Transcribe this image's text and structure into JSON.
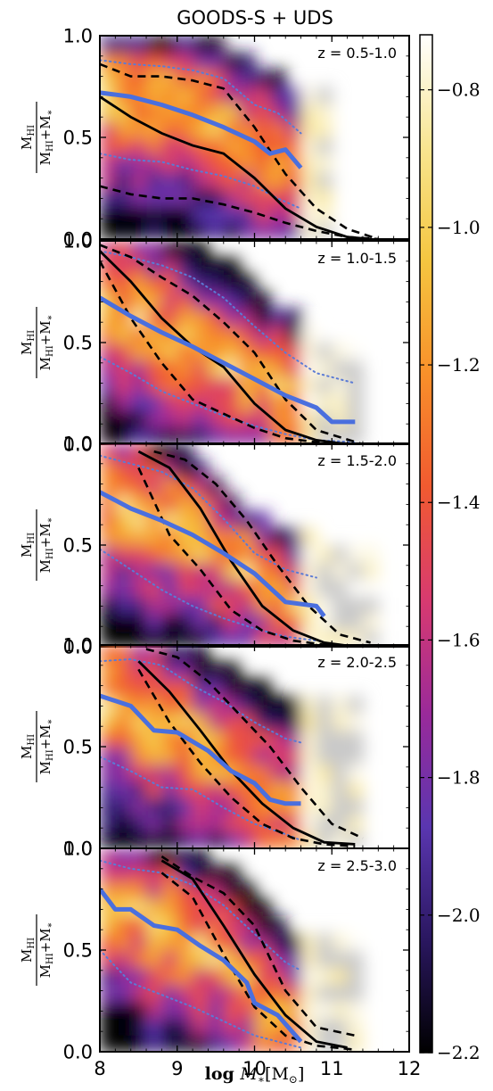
{
  "chart_data": {
    "type": "heatmap",
    "title": "GOODS-S + UDS",
    "xlabel_parts": [
      "log ",
      "M",
      "∗",
      "[M",
      "⊙",
      "]"
    ],
    "ylabel_parts": [
      "M",
      "HI",
      "M",
      "HI",
      "+M",
      "∗"
    ],
    "xlim": [
      8,
      12
    ],
    "xticks": [
      "8",
      "9",
      "10",
      "11",
      "12"
    ],
    "ylim": [
      0,
      1
    ],
    "yticks": [
      "0.0",
      "0.5",
      "1.0"
    ],
    "colorbar": {
      "range": [
        -2.2,
        -0.72
      ],
      "ticks": [
        -0.8,
        -1.0,
        -1.2,
        -1.4,
        -1.6,
        -1.8,
        -2.0,
        -2.2
      ],
      "tick_labels": [
        "−0.8",
        "−1.0",
        "−1.2",
        "−1.4",
        "−1.6",
        "−1.8",
        "−2.0",
        "−2.2"
      ],
      "colormap": [
        "#000000",
        "#2a1760",
        "#5a36b0",
        "#9a2a9a",
        "#d83a70",
        "#f15a30",
        "#f8902a",
        "#f5c640",
        "#f8e590",
        "#ffffff"
      ]
    },
    "colors": {
      "median": "#000000",
      "sixteen_84": "#000000",
      "blue_median": "#4a6fde",
      "blue_spread": "#5b7bd5",
      "empty": "#c9c9c9"
    },
    "panels": [
      {
        "label": "z = 0.5-1.0",
        "black_median": [
          [
            8.0,
            0.7
          ],
          [
            8.4,
            0.6
          ],
          [
            8.8,
            0.52
          ],
          [
            9.2,
            0.46
          ],
          [
            9.6,
            0.42
          ],
          [
            10.0,
            0.3
          ],
          [
            10.4,
            0.15
          ],
          [
            10.8,
            0.06
          ],
          [
            11.2,
            0.01
          ],
          [
            11.5,
            0.0
          ]
        ],
        "black_p16": [
          [
            8.0,
            0.26
          ],
          [
            8.4,
            0.22
          ],
          [
            8.8,
            0.2
          ],
          [
            9.2,
            0.2
          ],
          [
            9.6,
            0.17
          ],
          [
            10.0,
            0.13
          ],
          [
            10.4,
            0.08
          ],
          [
            10.8,
            0.04
          ],
          [
            11.2,
            0.01
          ],
          [
            11.6,
            0.0
          ]
        ],
        "black_p84": [
          [
            8.0,
            0.86
          ],
          [
            8.4,
            0.8
          ],
          [
            8.8,
            0.8
          ],
          [
            9.2,
            0.78
          ],
          [
            9.6,
            0.74
          ],
          [
            10.0,
            0.55
          ],
          [
            10.4,
            0.32
          ],
          [
            10.8,
            0.15
          ],
          [
            11.2,
            0.05
          ],
          [
            11.6,
            0.0
          ]
        ],
        "blue_median": [
          [
            8.0,
            0.72
          ],
          [
            8.4,
            0.7
          ],
          [
            8.8,
            0.66
          ],
          [
            9.2,
            0.61
          ],
          [
            9.6,
            0.55
          ],
          [
            10.0,
            0.48
          ],
          [
            10.2,
            0.42
          ],
          [
            10.4,
            0.44
          ],
          [
            10.6,
            0.35
          ]
        ],
        "blue_p16": [
          [
            8.0,
            0.42
          ],
          [
            8.4,
            0.39
          ],
          [
            8.8,
            0.38
          ],
          [
            9.2,
            0.34
          ],
          [
            9.6,
            0.31
          ],
          [
            10.0,
            0.26
          ],
          [
            10.3,
            0.2
          ],
          [
            10.6,
            0.15
          ]
        ],
        "blue_p84": [
          [
            8.0,
            0.88
          ],
          [
            8.4,
            0.86
          ],
          [
            8.8,
            0.85
          ],
          [
            9.2,
            0.83
          ],
          [
            9.6,
            0.79
          ],
          [
            10.0,
            0.66
          ],
          [
            10.3,
            0.62
          ],
          [
            10.6,
            0.52
          ]
        ],
        "xmax": 11.0
      },
      {
        "label": "z = 1.0-1.5",
        "black_median": [
          [
            8.0,
            0.95
          ],
          [
            8.4,
            0.8
          ],
          [
            8.8,
            0.62
          ],
          [
            9.2,
            0.48
          ],
          [
            9.6,
            0.38
          ],
          [
            10.0,
            0.2
          ],
          [
            10.4,
            0.07
          ],
          [
            10.8,
            0.02
          ],
          [
            11.2,
            0.0
          ]
        ],
        "black_p16": [
          [
            8.0,
            0.9
          ],
          [
            8.4,
            0.62
          ],
          [
            8.8,
            0.4
          ],
          [
            9.2,
            0.22
          ],
          [
            9.6,
            0.15
          ],
          [
            10.0,
            0.08
          ],
          [
            10.4,
            0.03
          ],
          [
            10.8,
            0.01
          ],
          [
            11.4,
            0.0
          ]
        ],
        "black_p84": [
          [
            8.0,
            0.98
          ],
          [
            8.4,
            0.92
          ],
          [
            8.8,
            0.82
          ],
          [
            9.2,
            0.73
          ],
          [
            9.6,
            0.6
          ],
          [
            10.0,
            0.45
          ],
          [
            10.4,
            0.22
          ],
          [
            10.8,
            0.07
          ],
          [
            11.4,
            0.0
          ]
        ],
        "blue_median": [
          [
            8.0,
            0.72
          ],
          [
            8.4,
            0.63
          ],
          [
            8.8,
            0.55
          ],
          [
            9.2,
            0.48
          ],
          [
            9.6,
            0.4
          ],
          [
            10.0,
            0.32
          ],
          [
            10.4,
            0.24
          ],
          [
            10.8,
            0.18
          ],
          [
            11.0,
            0.11
          ],
          [
            11.3,
            0.11
          ]
        ],
        "blue_p16": [
          [
            8.0,
            0.43
          ],
          [
            8.4,
            0.35
          ],
          [
            8.8,
            0.26
          ],
          [
            9.2,
            0.2
          ],
          [
            9.6,
            0.14
          ],
          [
            10.0,
            0.09
          ],
          [
            10.4,
            0.05
          ],
          [
            10.8,
            0.02
          ],
          [
            11.3,
            0.01
          ]
        ],
        "blue_p84": [
          [
            8.0,
            0.95
          ],
          [
            8.4,
            0.92
          ],
          [
            8.8,
            0.88
          ],
          [
            9.2,
            0.82
          ],
          [
            9.6,
            0.72
          ],
          [
            10.0,
            0.58
          ],
          [
            10.4,
            0.45
          ],
          [
            10.8,
            0.35
          ],
          [
            11.3,
            0.3
          ]
        ],
        "xmax": 11.4
      },
      {
        "label": "z = 1.5-2.0",
        "black_median": [
          [
            8.5,
            0.96
          ],
          [
            8.9,
            0.88
          ],
          [
            9.3,
            0.68
          ],
          [
            9.7,
            0.42
          ],
          [
            10.1,
            0.2
          ],
          [
            10.5,
            0.08
          ],
          [
            10.9,
            0.02
          ],
          [
            11.3,
            0.0
          ]
        ],
        "black_p16": [
          [
            8.5,
            0.88
          ],
          [
            8.9,
            0.55
          ],
          [
            9.3,
            0.38
          ],
          [
            9.7,
            0.18
          ],
          [
            10.1,
            0.08
          ],
          [
            10.5,
            0.03
          ],
          [
            10.9,
            0.01
          ],
          [
            11.4,
            0.0
          ]
        ],
        "black_p84": [
          [
            8.7,
            0.96
          ],
          [
            9.1,
            0.92
          ],
          [
            9.5,
            0.8
          ],
          [
            9.9,
            0.62
          ],
          [
            10.3,
            0.4
          ],
          [
            10.7,
            0.2
          ],
          [
            11.1,
            0.06
          ],
          [
            11.5,
            0.02
          ]
        ],
        "blue_median": [
          [
            8.0,
            0.76
          ],
          [
            8.4,
            0.68
          ],
          [
            8.8,
            0.62
          ],
          [
            9.2,
            0.55
          ],
          [
            9.6,
            0.46
          ],
          [
            10.0,
            0.36
          ],
          [
            10.4,
            0.22
          ],
          [
            10.8,
            0.2
          ],
          [
            10.9,
            0.15
          ]
        ],
        "blue_p16": [
          [
            8.0,
            0.48
          ],
          [
            8.4,
            0.38
          ],
          [
            8.8,
            0.28
          ],
          [
            9.2,
            0.2
          ],
          [
            9.6,
            0.14
          ],
          [
            10.0,
            0.09
          ],
          [
            10.4,
            0.05
          ],
          [
            10.8,
            0.03
          ]
        ],
        "blue_p84": [
          [
            8.0,
            0.94
          ],
          [
            8.4,
            0.9
          ],
          [
            8.8,
            0.86
          ],
          [
            9.2,
            0.78
          ],
          [
            9.6,
            0.63
          ],
          [
            10.0,
            0.46
          ],
          [
            10.4,
            0.38
          ],
          [
            10.8,
            0.34
          ]
        ],
        "xmax": 11.5
      },
      {
        "label": "z = 2.0-2.5",
        "black_median": [
          [
            8.5,
            0.92
          ],
          [
            8.9,
            0.77
          ],
          [
            9.3,
            0.58
          ],
          [
            9.7,
            0.38
          ],
          [
            10.1,
            0.22
          ],
          [
            10.5,
            0.1
          ],
          [
            10.9,
            0.03
          ],
          [
            11.3,
            0.02
          ]
        ],
        "black_p16": [
          [
            8.5,
            0.88
          ],
          [
            8.9,
            0.62
          ],
          [
            9.3,
            0.42
          ],
          [
            9.7,
            0.25
          ],
          [
            10.1,
            0.12
          ],
          [
            10.5,
            0.05
          ],
          [
            10.9,
            0.02
          ],
          [
            11.3,
            0.01
          ]
        ],
        "black_p84": [
          [
            8.6,
            0.98
          ],
          [
            9.0,
            0.94
          ],
          [
            9.4,
            0.82
          ],
          [
            9.8,
            0.66
          ],
          [
            10.2,
            0.5
          ],
          [
            10.6,
            0.3
          ],
          [
            11.0,
            0.12
          ],
          [
            11.4,
            0.05
          ]
        ],
        "blue_median": [
          [
            8.0,
            0.75
          ],
          [
            8.4,
            0.7
          ],
          [
            8.7,
            0.58
          ],
          [
            9.0,
            0.57
          ],
          [
            9.4,
            0.48
          ],
          [
            9.7,
            0.38
          ],
          [
            10.0,
            0.32
          ],
          [
            10.2,
            0.24
          ],
          [
            10.4,
            0.22
          ],
          [
            10.6,
            0.22
          ]
        ],
        "blue_p16": [
          [
            8.0,
            0.45
          ],
          [
            8.4,
            0.38
          ],
          [
            8.8,
            0.3
          ],
          [
            9.2,
            0.29
          ],
          [
            9.6,
            0.2
          ],
          [
            10.0,
            0.12
          ],
          [
            10.4,
            0.07
          ],
          [
            10.6,
            0.04
          ]
        ],
        "blue_p84": [
          [
            8.0,
            0.92
          ],
          [
            8.4,
            0.93
          ],
          [
            8.8,
            0.9
          ],
          [
            9.2,
            0.8
          ],
          [
            9.6,
            0.72
          ],
          [
            10.0,
            0.62
          ],
          [
            10.4,
            0.54
          ],
          [
            10.6,
            0.52
          ]
        ],
        "xmax": 11.4
      },
      {
        "label": "z = 2.5-3.0",
        "black_median": [
          [
            8.8,
            0.94
          ],
          [
            9.2,
            0.85
          ],
          [
            9.6,
            0.62
          ],
          [
            10.0,
            0.38
          ],
          [
            10.4,
            0.18
          ],
          [
            10.8,
            0.05
          ],
          [
            11.2,
            0.02
          ]
        ],
        "black_p16": [
          [
            8.8,
            0.88
          ],
          [
            9.2,
            0.76
          ],
          [
            9.6,
            0.48
          ],
          [
            10.0,
            0.22
          ],
          [
            10.4,
            0.08
          ],
          [
            10.8,
            0.03
          ],
          [
            11.3,
            0.01
          ]
        ],
        "black_p84": [
          [
            8.8,
            0.96
          ],
          [
            9.2,
            0.86
          ],
          [
            9.6,
            0.78
          ],
          [
            10.0,
            0.62
          ],
          [
            10.4,
            0.3
          ],
          [
            10.8,
            0.12
          ],
          [
            11.3,
            0.08
          ]
        ],
        "blue_median": [
          [
            8.0,
            0.8
          ],
          [
            8.2,
            0.7
          ],
          [
            8.4,
            0.7
          ],
          [
            8.7,
            0.62
          ],
          [
            9.0,
            0.6
          ],
          [
            9.3,
            0.52
          ],
          [
            9.6,
            0.45
          ],
          [
            9.9,
            0.34
          ],
          [
            10.0,
            0.24
          ],
          [
            10.3,
            0.18
          ],
          [
            10.6,
            0.05
          ]
        ],
        "blue_p16": [
          [
            8.0,
            0.5
          ],
          [
            8.4,
            0.34
          ],
          [
            8.8,
            0.28
          ],
          [
            9.2,
            0.22
          ],
          [
            9.6,
            0.15
          ],
          [
            10.0,
            0.08
          ],
          [
            10.4,
            0.04
          ],
          [
            10.6,
            0.02
          ]
        ],
        "blue_p84": [
          [
            8.0,
            0.94
          ],
          [
            8.4,
            0.9
          ],
          [
            8.8,
            0.88
          ],
          [
            9.2,
            0.82
          ],
          [
            9.6,
            0.72
          ],
          [
            10.0,
            0.58
          ],
          [
            10.4,
            0.44
          ],
          [
            10.6,
            0.4
          ]
        ],
        "xmax": 11.3
      }
    ]
  }
}
